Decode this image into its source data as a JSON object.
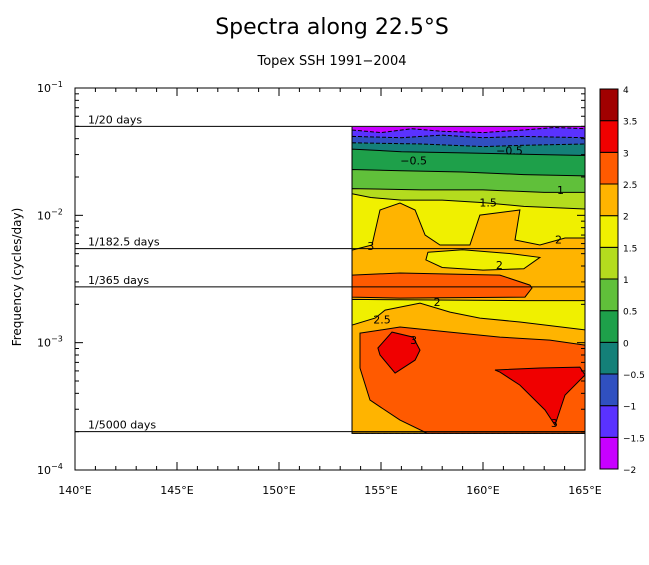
{
  "chart_data": {
    "type": "contour",
    "title": "Spectra along 22.5°S",
    "subtitle": "Topex SSH 1991−2004",
    "xlabel": "",
    "ylabel": "Frequency (cycles/day)",
    "xlim": [
      140,
      165
    ],
    "ylim_log10": [
      -4,
      -1
    ],
    "x_ticks": [
      {
        "value": 140,
        "label": "140°E"
      },
      {
        "value": 145,
        "label": "145°E"
      },
      {
        "value": 150,
        "label": "150°E"
      },
      {
        "value": 155,
        "label": "155°E"
      },
      {
        "value": 160,
        "label": "160°E"
      },
      {
        "value": 165,
        "label": "165°E"
      }
    ],
    "y_ticks": [
      {
        "log10": -1,
        "base": "10",
        "exp": "−1"
      },
      {
        "log10": -2,
        "base": "10",
        "exp": "−2"
      },
      {
        "log10": -3,
        "base": "10",
        "exp": "−3"
      },
      {
        "log10": -4,
        "base": "10",
        "exp": "−4"
      }
    ],
    "period_lines": [
      {
        "label": "1/20 days",
        "frequency": 0.05
      },
      {
        "label": "1/182.5 days",
        "frequency": 0.005479
      },
      {
        "label": "1/365 days",
        "frequency": 0.00274
      },
      {
        "label": "1/5000 days",
        "frequency": 0.0002
      }
    ],
    "colorbar": {
      "levels": [
        -2,
        -1.5,
        -1,
        -0.5,
        0,
        0.5,
        1,
        1.5,
        2,
        2.5,
        3,
        3.5,
        4
      ],
      "labels": [
        "−2",
        "−1.5",
        "−1",
        "−0.5",
        "0",
        "0.5",
        "1",
        "1.5",
        "2",
        "2.5",
        "3",
        "3.5",
        "4"
      ],
      "colors": [
        "#c800ff",
        "#5a32ff",
        "#3050c0",
        "#148078",
        "#1ea04a",
        "#60c03a",
        "#b4dc1e",
        "#f0f000",
        "#ffb400",
        "#ff5a00",
        "#f00000",
        "#a00000"
      ]
    },
    "data_extent": {
      "lon": [
        153.58,
        165
      ],
      "log10_frequency": [
        -3.71,
        -1.306
      ]
    },
    "filled_regions": [
      {
        "bin_min": -2,
        "points": [
          [
            153.58,
            -1.306
          ],
          [
            165,
            -1.306
          ],
          [
            165,
            -3.71
          ],
          [
            153.58,
            -3.71
          ]
        ]
      },
      {
        "bin_min": -1.5,
        "points": [
          [
            153.58,
            -1.33
          ],
          [
            155,
            -1.35
          ],
          [
            156.5,
            -1.32
          ],
          [
            158,
            -1.34
          ],
          [
            160,
            -1.35
          ],
          [
            162,
            -1.33
          ],
          [
            163.5,
            -1.31
          ],
          [
            165,
            -1.32
          ],
          [
            165,
            -3.71
          ],
          [
            153.58,
            -3.71
          ]
        ]
      },
      {
        "bin_min": -1,
        "points": [
          [
            153.58,
            -1.38
          ],
          [
            156,
            -1.39
          ],
          [
            158,
            -1.37
          ],
          [
            160,
            -1.39
          ],
          [
            162,
            -1.38
          ],
          [
            165,
            -1.39
          ],
          [
            165,
            -3.71
          ],
          [
            153.58,
            -3.71
          ]
        ]
      },
      {
        "bin_min": -0.5,
        "points": [
          [
            153.58,
            -1.43
          ],
          [
            157,
            -1.44
          ],
          [
            160,
            -1.46
          ],
          [
            162,
            -1.45
          ],
          [
            165,
            -1.44
          ],
          [
            165,
            -3.71
          ],
          [
            153.58,
            -3.71
          ]
        ]
      },
      {
        "bin_min": 0,
        "points": [
          [
            153.58,
            -1.48
          ],
          [
            156,
            -1.5
          ],
          [
            159,
            -1.51
          ],
          [
            162,
            -1.52
          ],
          [
            165,
            -1.53
          ],
          [
            165,
            -3.71
          ],
          [
            153.58,
            -3.71
          ]
        ]
      },
      {
        "bin_min": 0.5,
        "points": [
          [
            153.58,
            -1.64
          ],
          [
            156,
            -1.65
          ],
          [
            159,
            -1.66
          ],
          [
            162,
            -1.68
          ],
          [
            165,
            -1.69
          ],
          [
            165,
            -3.71
          ],
          [
            153.58,
            -3.71
          ]
        ]
      },
      {
        "bin_min": 1,
        "points": [
          [
            153.58,
            -1.79
          ],
          [
            157,
            -1.8
          ],
          [
            160,
            -1.8
          ],
          [
            163,
            -1.82
          ],
          [
            165,
            -1.82
          ],
          [
            165,
            -3.71
          ],
          [
            153.58,
            -3.71
          ]
        ]
      },
      {
        "bin_min": 1.5,
        "points": [
          [
            153.58,
            -1.83
          ],
          [
            154.5,
            -1.86
          ],
          [
            156,
            -1.88
          ],
          [
            158,
            -1.88
          ],
          [
            160,
            -1.9
          ],
          [
            162,
            -1.93
          ],
          [
            165,
            -1.95
          ],
          [
            165,
            -3.71
          ],
          [
            153.58,
            -3.71
          ]
        ]
      },
      {
        "bin_min": 2,
        "points": [
          [
            153.58,
            -2.273
          ],
          [
            154.56,
            -2.233
          ],
          [
            154.95,
            -1.958
          ],
          [
            155.93,
            -1.903
          ],
          [
            156.67,
            -1.958
          ],
          [
            157.16,
            -2.155
          ],
          [
            157.89,
            -2.233
          ],
          [
            159.36,
            -2.233
          ],
          [
            159.85,
            -1.998
          ],
          [
            161.81,
            -1.958
          ],
          [
            161.57,
            -2.194
          ],
          [
            162.79,
            -2.233
          ],
          [
            164.02,
            -2.178
          ],
          [
            165,
            -2.178
          ],
          [
            165,
            -3.71
          ],
          [
            153.58,
            -3.71
          ]
        ]
      },
      {
        "bin_min": 1.5,
        "points": [
          [
            157.3,
            -2.29
          ],
          [
            159,
            -2.27
          ],
          [
            161.3,
            -2.3
          ],
          [
            162.79,
            -2.33
          ],
          [
            162,
            -2.42
          ],
          [
            160,
            -2.43
          ],
          [
            158,
            -2.41
          ],
          [
            157.2,
            -2.35
          ]
        ]
      },
      {
        "bin_min": 2.5,
        "points": [
          [
            153.58,
            -2.469
          ],
          [
            155.93,
            -2.453
          ],
          [
            160.83,
            -2.469
          ],
          [
            162.3,
            -2.548
          ],
          [
            162.4,
            -2.571
          ],
          [
            162.06,
            -2.642
          ],
          [
            155.93,
            -2.65
          ],
          [
            153.58,
            -2.642
          ]
        ]
      },
      {
        "bin_min": 1.5,
        "points": [
          [
            153.58,
            -2.66
          ],
          [
            162,
            -2.67
          ],
          [
            165,
            -2.67
          ],
          [
            165,
            -2.9
          ],
          [
            161.81,
            -2.838
          ],
          [
            159.85,
            -2.807
          ],
          [
            158.38,
            -2.76
          ],
          [
            156.91,
            -2.689
          ],
          [
            155.2,
            -2.744
          ],
          [
            154.71,
            -2.807
          ],
          [
            153.58,
            -2.862
          ]
        ]
      },
      {
        "bin_min": 2.5,
        "points": [
          [
            153.97,
            -2.925
          ],
          [
            154.95,
            -2.901
          ],
          [
            155.93,
            -2.877
          ],
          [
            158.38,
            -2.917
          ],
          [
            160.83,
            -2.956
          ],
          [
            163.28,
            -2.98
          ],
          [
            165,
            -3.019
          ],
          [
            165,
            -3.71
          ],
          [
            157.25,
            -3.71
          ],
          [
            155.93,
            -3.608
          ],
          [
            154.46,
            -3.451
          ],
          [
            153.97,
            -3.2
          ]
        ]
      },
      {
        "bin_min": 3,
        "points": [
          [
            154.85,
            -3.042
          ],
          [
            155.54,
            -2.917
          ],
          [
            156.57,
            -2.956
          ],
          [
            156.91,
            -3.058
          ],
          [
            156.67,
            -3.137
          ],
          [
            155.69,
            -3.239
          ],
          [
            154.95,
            -3.097
          ]
        ]
      },
      {
        "bin_min": 3,
        "points": [
          [
            160.59,
            -3.215
          ],
          [
            162.79,
            -3.199
          ],
          [
            164.75,
            -3.192
          ],
          [
            165,
            -3.254
          ],
          [
            164.02,
            -3.412
          ],
          [
            163.53,
            -3.647
          ],
          [
            163.04,
            -3.529
          ],
          [
            161.81,
            -3.333
          ],
          [
            160.83,
            -3.231
          ]
        ]
      }
    ],
    "contour_labels": [
      {
        "text": "−0.5",
        "lon": 161.3,
        "log10": -1.49
      },
      {
        "text": "−0.5",
        "lon": 156.6,
        "log10": -1.57
      },
      {
        "text": "1",
        "lon": 163.8,
        "log10": -1.8
      },
      {
        "text": "1.5",
        "lon": 160.25,
        "log10": -1.9
      },
      {
        "text": "2",
        "lon": 163.7,
        "log10": -2.19
      },
      {
        "text": "2",
        "lon": 160.8,
        "log10": -2.39
      },
      {
        "text": "3",
        "lon": 154.5,
        "log10": -2.24
      },
      {
        "text": "2",
        "lon": 157.75,
        "log10": -2.68
      },
      {
        "text": "2.5",
        "lon": 155.05,
        "log10": -2.82
      },
      {
        "text": "3",
        "lon": 156.6,
        "log10": -2.98
      },
      {
        "text": "3",
        "lon": 163.5,
        "log10": -3.63
      }
    ]
  }
}
